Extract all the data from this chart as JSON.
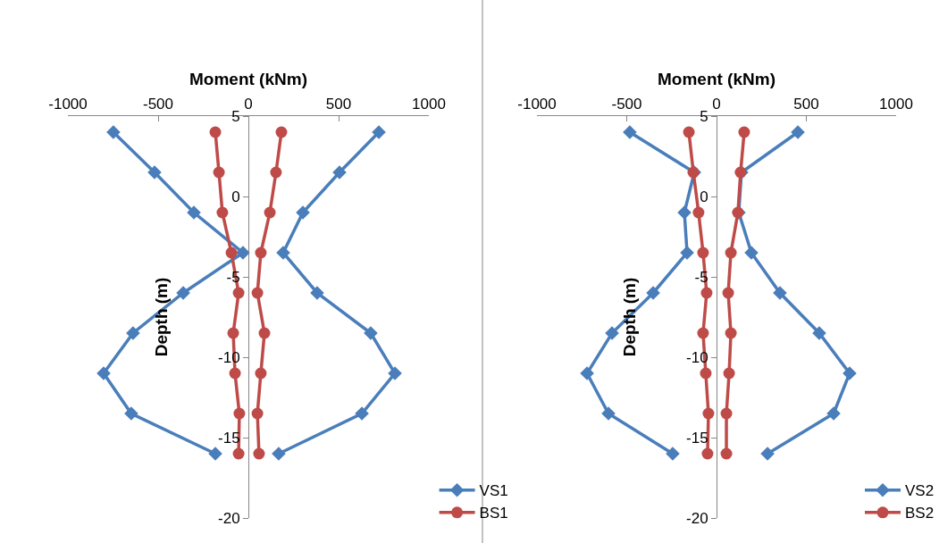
{
  "chart_data": [
    {
      "type": "line",
      "xlabel": "Moment (kNm)",
      "ylabel": "Depth (m)",
      "xlim": [
        -1000,
        1000
      ],
      "xticks": [
        -1000,
        -500,
        0,
        500,
        1000
      ],
      "ylim": [
        -20,
        5
      ],
      "yticks": [
        -20,
        -15,
        -10,
        -5,
        0,
        5
      ],
      "grid": false,
      "legend": "bottom right",
      "line_style": "solid",
      "series": [
        {
          "name": "VS1",
          "color": "#4a7ebb",
          "marker": "diamond",
          "x": [
            -748,
            -520,
            -302,
            -30,
            -361,
            -639,
            -802,
            -649,
            -183,
            null,
            168,
            629,
            812,
            678,
            381,
            193,
            302,
            505,
            723
          ],
          "values": [
            4,
            1.5,
            -1,
            -3.5,
            -6,
            -8.5,
            -11,
            -13.5,
            -16,
            null,
            -16,
            -13.5,
            -11,
            -8.5,
            -6,
            -3.5,
            -1,
            1.5,
            4
          ]
        },
        {
          "name": "BS1",
          "color": "#be4b48",
          "marker": "circle",
          "x": [
            -183,
            -163,
            -144,
            -94,
            -54,
            -84,
            -74,
            -50,
            -54,
            null,
            59,
            50,
            69,
            89,
            50,
            69,
            119,
            153,
            183
          ],
          "values": [
            4,
            1.5,
            -1,
            -3.5,
            -6,
            -8.5,
            -11,
            -13.5,
            -16,
            null,
            -16,
            -13.5,
            -11,
            -8.5,
            -6,
            -3.5,
            -1,
            1.5,
            4
          ]
        }
      ]
    },
    {
      "type": "line",
      "xlabel": "Moment (kNm)",
      "ylabel": "Depth (m)",
      "xlim": [
        -1000,
        1000
      ],
      "xticks": [
        -1000,
        -500,
        0,
        500,
        1000
      ],
      "ylim": [
        -20,
        5
      ],
      "yticks": [
        -20,
        -15,
        -10,
        -5,
        0,
        5
      ],
      "grid": false,
      "legend": "bottom right",
      "line_style": "solid",
      "series": [
        {
          "name": "VS2",
          "color": "#4a7ebb",
          "marker": "diamond",
          "x": [
            -483,
            -124,
            -179,
            -164,
            -353,
            -582,
            -721,
            -602,
            -244,
            null,
            284,
            652,
            741,
            572,
            353,
            194,
            124,
            139,
            453
          ],
          "values": [
            4,
            1.5,
            -1,
            -3.5,
            -6,
            -8.5,
            -11,
            -13.5,
            -16,
            null,
            -16,
            -13.5,
            -11,
            -8.5,
            -6,
            -3.5,
            -1,
            1.5,
            4
          ]
        },
        {
          "name": "BS2",
          "color": "#be4b48",
          "marker": "circle",
          "x": [
            -154,
            -129,
            -100,
            -75,
            -55,
            -75,
            -60,
            -45,
            -50,
            null,
            55,
            55,
            70,
            80,
            65,
            80,
            119,
            134,
            154
          ],
          "values": [
            4,
            1.5,
            -1,
            -3.5,
            -6,
            -8.5,
            -11,
            -13.5,
            -16,
            null,
            -16,
            -13.5,
            -11,
            -8.5,
            -6,
            -3.5,
            -1,
            1.5,
            4
          ]
        }
      ]
    }
  ]
}
